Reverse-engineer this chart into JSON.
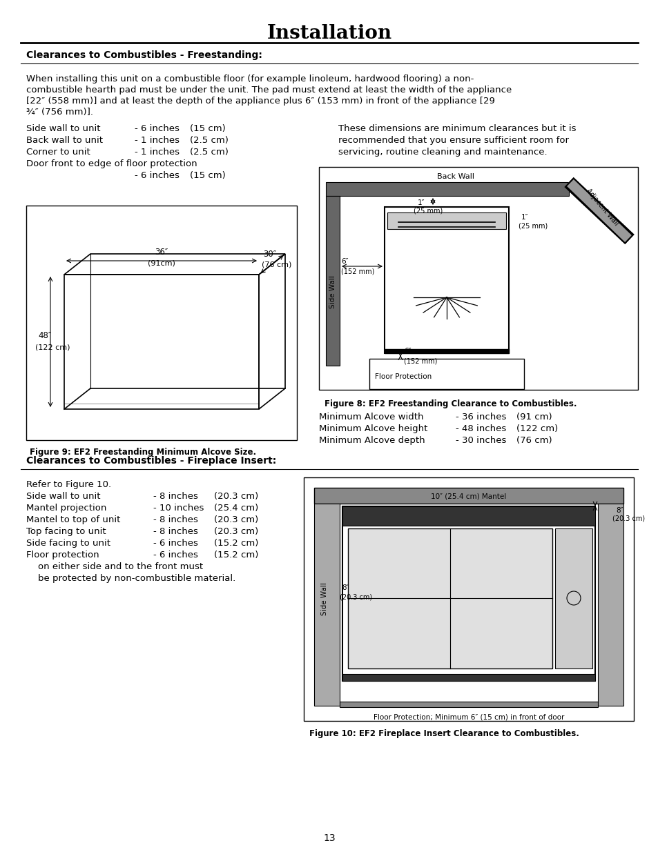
{
  "title": "Installation",
  "section1_heading": "Clearances to Combustibles - Freestanding:",
  "section2_heading": "Clearances to Combustibles - Fireplace Insert:",
  "para1_lines": [
    "When installing this unit on a combustible floor (for example linoleum, hardwood flooring) a non-",
    "combustible hearth pad must be under the unit. The pad must extend at least the width of the appliance",
    "[22″ (558 mm)] and at least the depth of the appliance plus 6″ (153 mm) in front of the appliance [29",
    "¾″ (756 mm)]."
  ],
  "clearances_left": [
    [
      "Side wall to unit",
      "- 6 inches",
      "(15 cm)"
    ],
    [
      "Back wall to unit",
      "- 1 inches",
      "(2.5 cm)"
    ],
    [
      "Corner to unit",
      "- 1 inches",
      "(2.5 cm)"
    ],
    [
      "Door front to edge of floor protection",
      "",
      ""
    ],
    [
      "",
      "- 6 inches",
      "(15 cm)"
    ]
  ],
  "right_para_lines": [
    "These dimensions are minimum clearances but it is",
    "recommended that you ensure sufficient room for",
    "servicing, routine cleaning and maintenance."
  ],
  "fig8_caption": "Figure 8: EF2 Freestanding Clearance to Combustibles.",
  "fig9_caption": "Figure 9: EF2 Freestanding Minimum Alcove Size.",
  "alcove_data": [
    [
      "Minimum Alcove width",
      "- 36 inches",
      "(91 cm)"
    ],
    [
      "Minimum Alcove height",
      "- 48 inches",
      "(122 cm)"
    ],
    [
      "Minimum Alcove depth",
      "- 30 inches",
      "(76 cm)"
    ]
  ],
  "insert_clearances": [
    [
      "Refer to Figure 10.",
      "",
      ""
    ],
    [
      "Side wall to unit",
      "- 8 inches",
      "(20.3 cm)"
    ],
    [
      "Mantel projection",
      "- 10 inches",
      "(25.4 cm)"
    ],
    [
      "Mantel to top of unit",
      "- 8 inches",
      "(20.3 cm)"
    ],
    [
      "Top facing to unit",
      "- 8 inches",
      "(20.3 cm)"
    ],
    [
      "Side facing to unit",
      "- 6 inches",
      "(15.2 cm)"
    ],
    [
      "Floor protection",
      "- 6 inches",
      "(15.2 cm)"
    ],
    [
      "    on either side and to the front must",
      "",
      ""
    ],
    [
      "    be protected by non-combustible material.",
      "",
      ""
    ]
  ],
  "fig10_caption": "Figure 10: EF2 Fireplace Insert Clearance to Combustibles.",
  "page_number": "13",
  "bg_color": "#ffffff",
  "text_color": "#000000"
}
